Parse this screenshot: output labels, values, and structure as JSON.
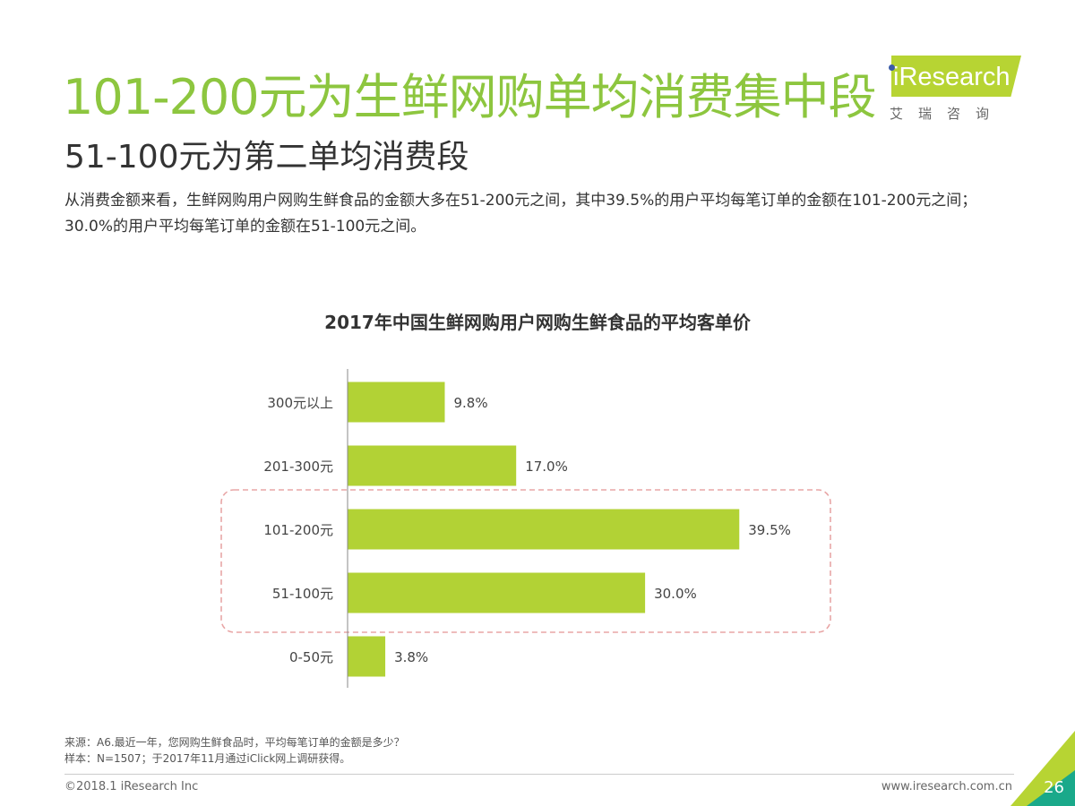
{
  "header": {
    "title": "101-200元为生鲜网购单均消费集中段",
    "subtitle": "51-100元为第二单均消费段",
    "description": "从消费金额来看，生鲜网购用户网购生鲜食品的金额大多在51-200元之间，其中39.5%的用户平均每笔订单的金额在101-200元之间；30.0%的用户平均每笔订单的金额在51-100元之间。"
  },
  "logo": {
    "brand": "iResearch",
    "chinese": "艾瑞咨询"
  },
  "chart_data": {
    "type": "bar",
    "orientation": "horizontal",
    "title": "2017年中国生鲜网购用户网购生鲜食品的平均客单价",
    "categories": [
      "300元以上",
      "201-300元",
      "101-200元",
      "51-100元",
      "0-50元"
    ],
    "values": [
      9.8,
      17.0,
      39.5,
      30.0,
      3.8
    ],
    "value_labels": [
      "9.8%",
      "17.0%",
      "39.5%",
      "30.0%",
      "3.8%"
    ],
    "unit": "%",
    "xlim": [
      0,
      45
    ],
    "highlighted_categories": [
      "101-200元",
      "51-100元"
    ],
    "bar_color": "#b2d235",
    "highlight_color": "#e8a6a6",
    "grid": false
  },
  "footer": {
    "source": "来源：A6.最近一年，您网购生鲜食品时，平均每笔订单的金额是多少？",
    "sample": "样本：N=1507；于2017年11月通过iClick网上调研获得。",
    "copyright": "©2018.1 iResearch Inc",
    "website": "www.iresearch.com.cn",
    "page_number": "26"
  },
  "colors": {
    "title_green": "#8dc63f",
    "accent_green": "#b7d433",
    "accent_teal": "#1aa98a"
  }
}
